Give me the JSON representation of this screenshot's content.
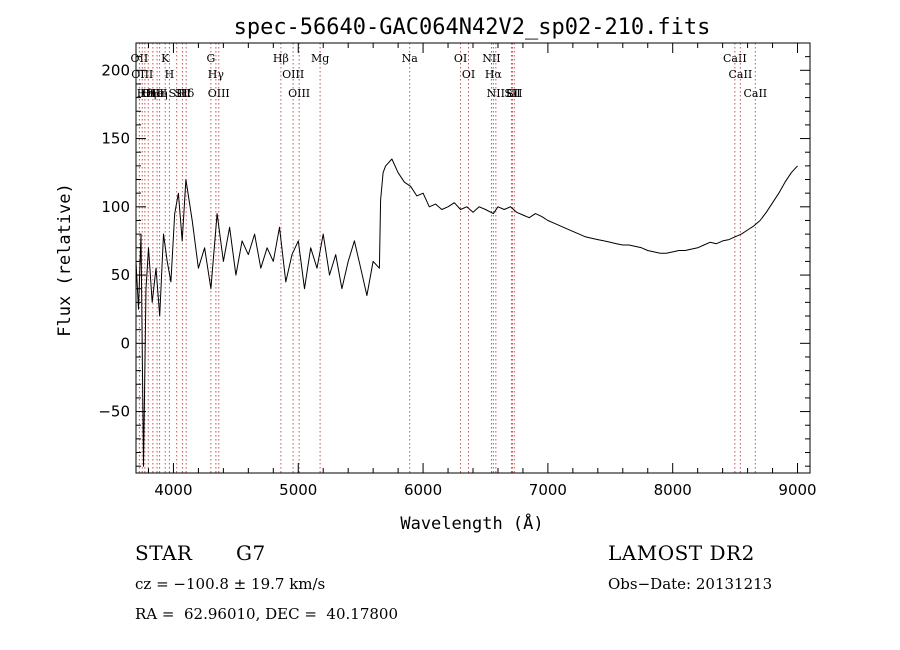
{
  "chart_data": {
    "type": "line",
    "title": "spec-56640-GAC064N42V2_sp02-210.fits",
    "xlabel": "Wavelength (Å)",
    "ylabel": "Flux (relative)",
    "xlim": [
      3700,
      9100
    ],
    "ylim": [
      -95,
      220
    ],
    "grid": false,
    "x_ticks": [
      4000,
      5000,
      6000,
      7000,
      8000,
      9000
    ],
    "y_ticks": [
      -50,
      0,
      50,
      100,
      150,
      200
    ],
    "series": [
      {
        "x": [
          3700,
          3720,
          3740,
          3760,
          3780,
          3800,
          3830,
          3860,
          3890,
          3920,
          3950,
          3980,
          4010,
          4040,
          4070,
          4100,
          4150,
          4200,
          4250,
          4300,
          4350,
          4400,
          4450,
          4500,
          4550,
          4600,
          4650,
          4700,
          4750,
          4800,
          4850,
          4900,
          4950,
          5000,
          5050,
          5100,
          5150,
          5200,
          5250,
          5300,
          5350,
          5400,
          5450,
          5500,
          5550,
          5600,
          5650,
          5660,
          5680,
          5700,
          5750,
          5800,
          5850,
          5900,
          5950,
          6000,
          6050,
          6100,
          6150,
          6200,
          6250,
          6300,
          6350,
          6400,
          6450,
          6500,
          6563,
          6600,
          6650,
          6700,
          6750,
          6800,
          6850,
          6900,
          6950,
          7000,
          7050,
          7100,
          7150,
          7200,
          7250,
          7300,
          7350,
          7400,
          7450,
          7500,
          7550,
          7600,
          7650,
          7700,
          7750,
          7800,
          7850,
          7900,
          7950,
          8000,
          8050,
          8100,
          8150,
          8200,
          8250,
          8300,
          8350,
          8400,
          8450,
          8500,
          8550,
          8600,
          8650,
          8700,
          8750,
          8800,
          8850,
          8900,
          8950,
          9000
        ],
        "values": [
          60,
          25,
          80,
          -90,
          40,
          70,
          30,
          55,
          20,
          80,
          60,
          45,
          95,
          110,
          75,
          120,
          90,
          55,
          70,
          40,
          95,
          60,
          85,
          50,
          75,
          65,
          80,
          55,
          70,
          60,
          85,
          45,
          65,
          75,
          40,
          70,
          55,
          80,
          50,
          65,
          40,
          60,
          75,
          55,
          35,
          60,
          55,
          105,
          125,
          130,
          135,
          125,
          118,
          115,
          108,
          110,
          100,
          102,
          98,
          100,
          103,
          98,
          100,
          96,
          100,
          98,
          95,
          100,
          98,
          100,
          96,
          94,
          92,
          95,
          93,
          90,
          88,
          86,
          84,
          82,
          80,
          78,
          77,
          76,
          75,
          74,
          73,
          72,
          72,
          71,
          70,
          68,
          67,
          66,
          66,
          67,
          68,
          68,
          69,
          70,
          72,
          74,
          73,
          75,
          76,
          78,
          80,
          83,
          86,
          90,
          96,
          103,
          110,
          118,
          125,
          130
        ]
      }
    ],
    "lines": [
      {
        "wl": 3727,
        "label": "OII"
      },
      {
        "wl": 3750,
        "label": "OIII"
      },
      {
        "wl": 3771,
        "label": "Hθ"
      },
      {
        "wl": 3798,
        "label": "Hη"
      },
      {
        "wl": 3835,
        "label": "OIII"
      },
      {
        "wl": 3869,
        "label": "HeI"
      },
      {
        "wl": 3889,
        "label": "Hη"
      },
      {
        "wl": 3934,
        "label": "K"
      },
      {
        "wl": 3968,
        "label": "H"
      },
      {
        "wl": 4026,
        "label": "SII"
      },
      {
        "wl": 4072,
        "label": "SII"
      },
      {
        "wl": 4102,
        "label": "Hδ"
      },
      {
        "wl": 4300,
        "label": "G"
      },
      {
        "wl": 4340,
        "label": "Hγ"
      },
      {
        "wl": 4363,
        "label": "OIII"
      },
      {
        "wl": 4861,
        "label": "Hβ"
      },
      {
        "wl": 4959,
        "label": "OIII"
      },
      {
        "wl": 5007,
        "label": "OIII"
      },
      {
        "wl": 5175,
        "label": "Mg"
      },
      {
        "wl": 5893,
        "label": "Na"
      },
      {
        "wl": 6300,
        "label": "OI"
      },
      {
        "wl": 6364,
        "label": "OI"
      },
      {
        "wl": 6548,
        "label": "NII"
      },
      {
        "wl": 6563,
        "label": "Hα"
      },
      {
        "wl": 6583,
        "label": "NII"
      },
      {
        "wl": 6708,
        "label": "Li"
      },
      {
        "wl": 6716,
        "label": "SII"
      },
      {
        "wl": 6731,
        "label": "SII"
      },
      {
        "wl": 8498,
        "label": "CaII"
      },
      {
        "wl": 8542,
        "label": "CaII"
      },
      {
        "wl": 8662,
        "label": "CaII"
      }
    ]
  },
  "info": {
    "object_type": "STAR",
    "subclass": "G7",
    "survey": "LAMOST DR2",
    "cz": "cz = −100.8 ± 19.7 km/s",
    "obs_date": "Obs−Date: 20131213",
    "coords": "RA =  62.96010, DEC =  40.17800"
  }
}
